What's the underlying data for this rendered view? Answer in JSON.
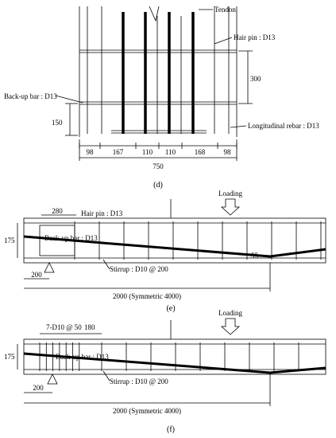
{
  "panel_d": {
    "caption": "(d)",
    "tendon": "Tendon",
    "hair_pin": "Hair pin : D13",
    "backup_bar": "Back-up bar : D13",
    "longitudinal": "Longitudinal rebar : D13",
    "dim_300": "300",
    "dim_150": "150",
    "bottom_dims": [
      "98",
      "167",
      "110",
      "110",
      "168",
      "98"
    ],
    "total": "750"
  },
  "panel_e": {
    "caption": "(e)",
    "loading": "Loading",
    "dim_280": "280",
    "hair_pin": "Hair pin : D13",
    "backup_bar": "Back-up bar : D13",
    "dim_175": "175",
    "dim_55": "55",
    "stirrup": "Stirrup : D10 @ 200",
    "dim_200": "200",
    "span": "2000 (Symmetric 4000)"
  },
  "panel_f": {
    "caption": "(f)",
    "loading": "Loading",
    "dense": "7-D10 @ 50",
    "dim_180": "180",
    "backup_bar": "Back-up bar : D13",
    "dim_175": "175",
    "stirrup": "Stirrup : D10 @ 200",
    "dim_200": "200",
    "span": "2000 (Symmetric 4000)"
  }
}
